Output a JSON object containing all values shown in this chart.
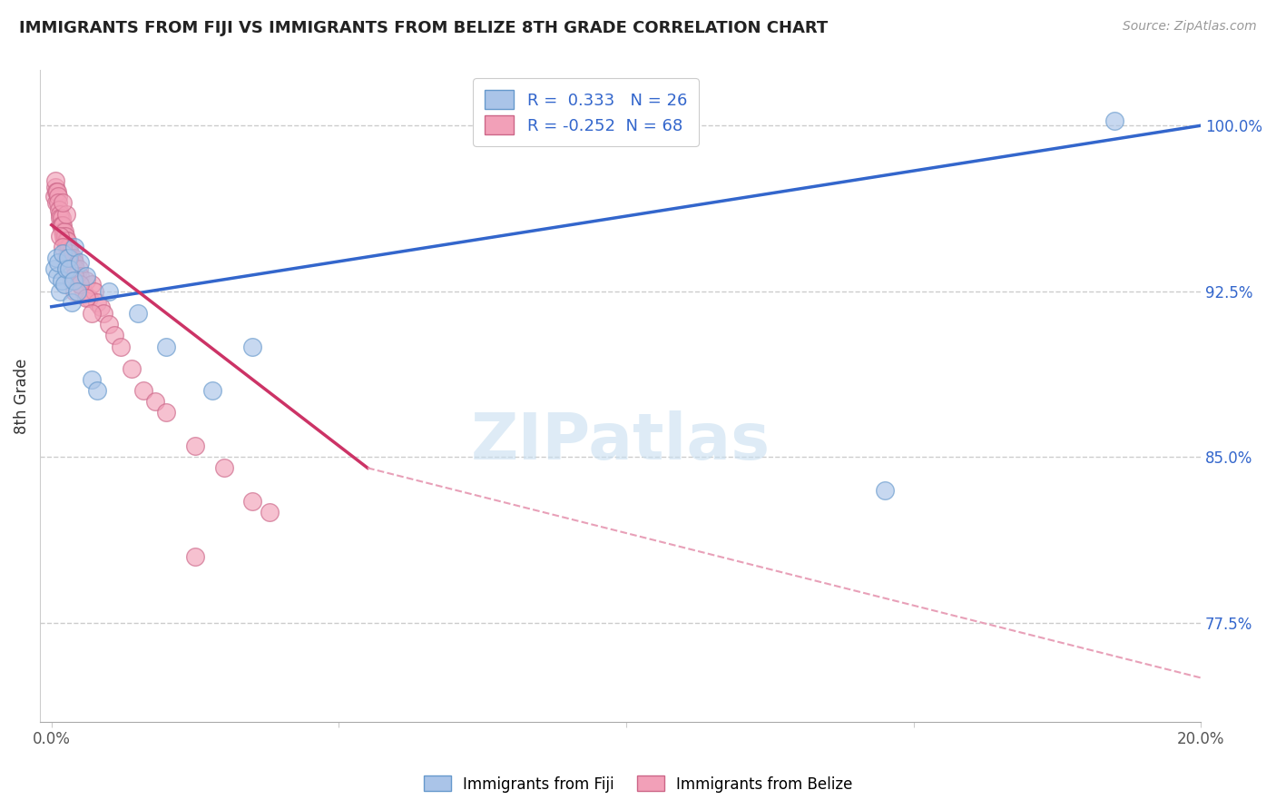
{
  "title": "IMMIGRANTS FROM FIJI VS IMMIGRANTS FROM BELIZE 8TH GRADE CORRELATION CHART",
  "source": "Source: ZipAtlas.com",
  "ylabel": "8th Grade",
  "xlim": [
    -0.2,
    20.0
  ],
  "ylim": [
    73.0,
    102.5
  ],
  "yticks": [
    77.5,
    85.0,
    92.5,
    100.0
  ],
  "xtick_positions": [
    0.0,
    5.0,
    10.0,
    15.0,
    20.0
  ],
  "xtick_labels": [
    "0.0%",
    "",
    "",
    "",
    "20.0%"
  ],
  "ytick_labels": [
    "77.5%",
    "85.0%",
    "92.5%",
    "100.0%"
  ],
  "fiji_color": "#aac4e8",
  "fiji_edge_color": "#6699cc",
  "belize_color": "#f2a0b8",
  "belize_edge_color": "#cc6688",
  "fiji_R": 0.333,
  "fiji_N": 26,
  "belize_R": -0.252,
  "belize_N": 68,
  "fiji_line_color": "#3366cc",
  "belize_line_color": "#cc3366",
  "belize_dash_color": "#e8a0b8",
  "legend_color": "#3366cc",
  "watermark_color": "#c8dff0",
  "fiji_line_x0": 0.0,
  "fiji_line_y0": 91.8,
  "fiji_line_x1": 20.0,
  "fiji_line_y1": 100.0,
  "belize_solid_x0": 0.0,
  "belize_solid_y0": 95.5,
  "belize_solid_x1": 5.5,
  "belize_solid_y1": 84.5,
  "belize_dash_x0": 5.5,
  "belize_dash_y0": 84.5,
  "belize_dash_x1": 20.0,
  "belize_dash_y1": 75.0,
  "fiji_x": [
    0.05,
    0.08,
    0.1,
    0.12,
    0.15,
    0.18,
    0.2,
    0.22,
    0.25,
    0.28,
    0.3,
    0.35,
    0.38,
    0.4,
    0.45,
    0.5,
    0.6,
    0.7,
    0.8,
    1.0,
    1.5,
    2.0,
    2.8,
    3.5,
    14.5,
    18.5
  ],
  "fiji_y": [
    93.5,
    94.0,
    93.2,
    93.8,
    92.5,
    93.0,
    94.2,
    92.8,
    93.5,
    94.0,
    93.5,
    92.0,
    93.0,
    94.5,
    92.5,
    93.8,
    93.2,
    88.5,
    88.0,
    92.5,
    91.5,
    90.0,
    88.0,
    90.0,
    83.5,
    100.2
  ],
  "belize_x": [
    0.05,
    0.06,
    0.07,
    0.08,
    0.09,
    0.1,
    0.11,
    0.12,
    0.13,
    0.14,
    0.15,
    0.16,
    0.17,
    0.18,
    0.19,
    0.2,
    0.21,
    0.22,
    0.23,
    0.24,
    0.25,
    0.26,
    0.27,
    0.28,
    0.29,
    0.3,
    0.32,
    0.34,
    0.36,
    0.38,
    0.4,
    0.42,
    0.45,
    0.48,
    0.5,
    0.55,
    0.6,
    0.65,
    0.7,
    0.75,
    0.8,
    0.85,
    0.9,
    1.0,
    1.1,
    1.2,
    1.4,
    1.6,
    1.8,
    2.0,
    2.5,
    3.0,
    3.5,
    3.8,
    0.15,
    0.2,
    0.25,
    0.3,
    0.35,
    0.4,
    0.25,
    0.2,
    2.5,
    0.3,
    0.4,
    0.5,
    0.6,
    0.7
  ],
  "belize_y": [
    96.8,
    97.2,
    97.5,
    96.5,
    97.0,
    97.0,
    96.8,
    96.5,
    96.2,
    96.0,
    95.8,
    95.5,
    95.8,
    95.5,
    95.2,
    95.5,
    95.0,
    95.2,
    94.8,
    95.0,
    94.8,
    94.5,
    94.8,
    94.5,
    94.2,
    94.5,
    94.2,
    94.0,
    93.8,
    94.0,
    93.8,
    93.5,
    93.2,
    93.5,
    93.2,
    92.5,
    93.0,
    92.2,
    92.8,
    92.5,
    92.0,
    91.8,
    91.5,
    91.0,
    90.5,
    90.0,
    89.0,
    88.0,
    87.5,
    87.0,
    85.5,
    84.5,
    83.0,
    82.5,
    95.0,
    94.5,
    94.0,
    93.5,
    93.0,
    92.5,
    96.0,
    96.5,
    80.5,
    94.0,
    93.2,
    92.8,
    92.2,
    91.5
  ]
}
